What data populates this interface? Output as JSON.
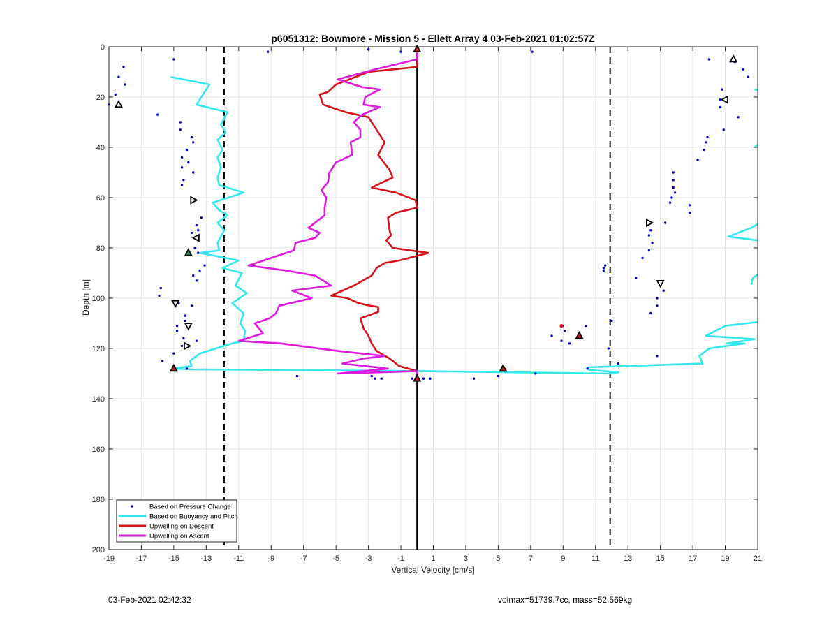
{
  "chart_data": {
    "type": "scatter",
    "title": "p6051312: Bowmore - Mission 5 - Ellett Array 4 03-Feb-2021 01:02:57Z",
    "xlabel": "Vertical Velocity [cm/s]",
    "ylabel": "Depth [m]",
    "xlim": [
      -19,
      21
    ],
    "ylim": [
      0,
      200
    ],
    "y_reversed": true,
    "xticks": [
      -19,
      -17,
      -15,
      -13,
      -11,
      -9,
      -7,
      -5,
      -3,
      -1,
      1,
      3,
      5,
      7,
      9,
      11,
      13,
      15,
      17,
      19,
      21
    ],
    "yticks": [
      0,
      20,
      40,
      60,
      80,
      100,
      120,
      140,
      160,
      180,
      200
    ],
    "grid": true,
    "legend_position": "bottom-left",
    "reference_lines": {
      "solid_x": 0,
      "dashed_x": [
        -11.9,
        11.9
      ]
    },
    "series": [
      {
        "name": "Based on Pressure Change",
        "style": "points",
        "color": "#0000cc",
        "points": [
          [
            -9.2,
            2
          ],
          [
            -3,
            1
          ],
          [
            -1,
            2
          ],
          [
            7.1,
            2
          ],
          [
            -15,
            5
          ],
          [
            -18.1,
            8
          ],
          [
            -18.4,
            12
          ],
          [
            -18,
            15
          ],
          [
            -18.6,
            19
          ],
          [
            -19,
            23
          ],
          [
            -16,
            27
          ],
          [
            -14.6,
            30
          ],
          [
            -14.6,
            33
          ],
          [
            -13.9,
            36
          ],
          [
            -13.8,
            38
          ],
          [
            -14.2,
            41
          ],
          [
            -14.5,
            44
          ],
          [
            -14.1,
            46
          ],
          [
            -14.5,
            48
          ],
          [
            -13.8,
            50
          ],
          [
            -14.4,
            53
          ],
          [
            -14.5,
            55
          ],
          [
            -13.3,
            68
          ],
          [
            -13.6,
            71
          ],
          [
            -13.5,
            73
          ],
          [
            -13.9,
            74
          ],
          [
            -13.7,
            80
          ],
          [
            -13.5,
            82
          ],
          [
            -13.1,
            87
          ],
          [
            -13.4,
            89
          ],
          [
            -13.8,
            91
          ],
          [
            -13.6,
            93
          ],
          [
            -15.8,
            96
          ],
          [
            -15.9,
            99
          ],
          [
            -14.7,
            102
          ],
          [
            -13.9,
            103
          ],
          [
            -14.3,
            107
          ],
          [
            -14.3,
            109
          ],
          [
            -14.8,
            111
          ],
          [
            -14.8,
            113
          ],
          [
            -14.4,
            116
          ],
          [
            -13.6,
            117
          ],
          [
            -14.5,
            119
          ],
          [
            -15,
            122
          ],
          [
            -15.7,
            125
          ],
          [
            -15,
            127
          ],
          [
            -14.2,
            128
          ],
          [
            -7.4,
            131
          ],
          [
            -2.8,
            131
          ],
          [
            -2.6,
            132
          ],
          [
            -2.2,
            132
          ],
          [
            0,
            132
          ],
          [
            -0.3,
            132
          ],
          [
            0.4,
            132
          ],
          [
            0.8,
            132
          ],
          [
            3.5,
            132
          ],
          [
            5,
            131
          ],
          [
            7.3,
            130
          ],
          [
            9,
            111
          ],
          [
            10.4,
            111
          ],
          [
            9.1,
            113
          ],
          [
            8.3,
            115
          ],
          [
            8.9,
            117
          ],
          [
            9.4,
            118
          ],
          [
            10,
            114
          ],
          [
            10.5,
            128
          ],
          [
            12.4,
            126
          ],
          [
            11.5,
            88
          ],
          [
            11.6,
            87
          ],
          [
            11.5,
            89
          ],
          [
            12,
            109
          ],
          [
            11.8,
            120
          ],
          [
            13.5,
            92
          ],
          [
            13.9,
            84
          ],
          [
            14.3,
            75
          ],
          [
            14.3,
            81
          ],
          [
            14.5,
            78
          ],
          [
            14.4,
            73
          ],
          [
            14.4,
            106
          ],
          [
            14.8,
            103
          ],
          [
            14.8,
            100
          ],
          [
            15.2,
            97
          ],
          [
            15.3,
            70
          ],
          [
            14.8,
            123
          ],
          [
            15.8,
            50
          ],
          [
            15.8,
            53
          ],
          [
            15.8,
            56
          ],
          [
            15.9,
            58
          ],
          [
            15.7,
            60
          ],
          [
            15.6,
            62
          ],
          [
            16.8,
            63
          ],
          [
            16.8,
            66
          ],
          [
            17.3,
            45
          ],
          [
            17.7,
            41
          ],
          [
            17.8,
            38
          ],
          [
            17.9,
            36
          ],
          [
            18,
            5
          ],
          [
            18.7,
            24
          ],
          [
            18.8,
            17
          ],
          [
            18.7,
            21
          ],
          [
            18.9,
            33
          ],
          [
            19.6,
            6
          ],
          [
            20.1,
            9
          ],
          [
            20.4,
            12
          ],
          [
            19.8,
            28
          ]
        ]
      },
      {
        "name": "Based on Buoyancy and Pitch",
        "style": "line",
        "color": "#33e8ee",
        "paths": [
          [
            [
              -15.2,
              12
            ],
            [
              -12.8,
              15
            ],
            [
              -13.6,
              23
            ],
            [
              -11.7,
              26
            ],
            [
              -12.1,
              31
            ],
            [
              -11.8,
              34
            ],
            [
              -12.3,
              37
            ],
            [
              -12,
              41
            ],
            [
              -12.3,
              44
            ],
            [
              -12.1,
              48
            ],
            [
              -12.3,
              52
            ],
            [
              -12.2,
              55
            ],
            [
              -10.7,
              58
            ],
            [
              -12.6,
              62
            ],
            [
              -12.2,
              65
            ],
            [
              -11.7,
              67
            ],
            [
              -12.3,
              70
            ],
            [
              -11.9,
              73
            ],
            [
              -12.3,
              78
            ],
            [
              -12.2,
              81
            ],
            [
              -13.4,
              82
            ],
            [
              -11,
              85
            ],
            [
              -12,
              88
            ],
            [
              -10.8,
              90
            ],
            [
              -11.2,
              95
            ],
            [
              -10.5,
              98
            ],
            [
              -11.4,
              102
            ],
            [
              -10.7,
              106
            ],
            [
              -10.9,
              110
            ],
            [
              -10.6,
              113
            ],
            [
              -10.7,
              117
            ],
            [
              -11.4,
              118
            ],
            [
              -13.4,
              122
            ],
            [
              -14,
              125
            ],
            [
              -13.9,
              127
            ],
            [
              -15,
              128
            ],
            [
              -13.9,
              128.3
            ],
            [
              0,
              129
            ],
            [
              12,
              130
            ],
            [
              12.4,
              129.5
            ],
            [
              10.6,
              128.5
            ],
            [
              10.5,
              127.5
            ],
            [
              17.6,
              126
            ],
            [
              17.4,
              123
            ],
            [
              18,
              120
            ],
            [
              20.2,
              118
            ],
            [
              19.1,
              118
            ],
            [
              20.8,
              116.3
            ],
            [
              17.8,
              115
            ],
            [
              19,
              111
            ],
            [
              21,
              109.5
            ]
          ],
          [
            [
              20.6,
              94.5
            ],
            [
              20.7,
              92
            ],
            [
              21,
              90.5
            ]
          ],
          [
            [
              21,
              77
            ],
            [
              19.2,
              75.5
            ],
            [
              20.6,
              72
            ],
            [
              21,
              70.5
            ]
          ],
          [
            [
              20.8,
              40
            ],
            [
              21,
              39
            ]
          ],
          [
            [
              20.8,
              17
            ],
            [
              21,
              17.2
            ]
          ]
        ]
      },
      {
        "name": "Upwelling on Descent",
        "style": "line",
        "color": "#d4141a",
        "points": [
          [
            0,
            1
          ],
          [
            0,
            8
          ],
          [
            -3,
            10
          ],
          [
            -5,
            15
          ],
          [
            -5.5,
            18
          ],
          [
            -6,
            19
          ],
          [
            -5.8,
            23
          ],
          [
            -4.4,
            26
          ],
          [
            -3,
            28
          ],
          [
            -2.7,
            31
          ],
          [
            -2.5,
            33
          ],
          [
            -2,
            38
          ],
          [
            -2.4,
            43
          ],
          [
            -1.7,
            49
          ],
          [
            -1.5,
            52
          ],
          [
            -2.8,
            56
          ],
          [
            -1.3,
            58
          ],
          [
            -0.1,
            61
          ],
          [
            0,
            64
          ],
          [
            -1.3,
            66
          ],
          [
            -1.8,
            68
          ],
          [
            -1.7,
            73
          ],
          [
            -1.6,
            75
          ],
          [
            -1.9,
            77
          ],
          [
            -1.5,
            80
          ],
          [
            0.7,
            82
          ],
          [
            -1.1,
            85
          ],
          [
            -2,
            86
          ],
          [
            -2.5,
            88
          ],
          [
            -2.8,
            91
          ],
          [
            -3.9,
            95
          ],
          [
            -5.3,
            99
          ],
          [
            -4.3,
            100
          ],
          [
            -3.6,
            102
          ],
          [
            -2.9,
            103
          ],
          [
            -2.4,
            103.5
          ],
          [
            -2.4,
            105.5
          ],
          [
            -3.5,
            108
          ],
          [
            -3.3,
            112
          ],
          [
            -3,
            115
          ],
          [
            -2.8,
            118
          ],
          [
            -2.5,
            121
          ],
          [
            -1.7,
            124
          ],
          [
            -1.1,
            127
          ],
          [
            0,
            129
          ],
          [
            0,
            132
          ]
        ]
      },
      {
        "name": "Upwelling on Ascent",
        "style": "line",
        "color": "#e019e0",
        "points": [
          [
            0,
            1
          ],
          [
            0,
            5
          ],
          [
            -2.6,
            9
          ],
          [
            -4.9,
            13
          ],
          [
            -3.4,
            16
          ],
          [
            -2.3,
            17
          ],
          [
            -3.2,
            20
          ],
          [
            -3.3,
            23
          ],
          [
            -2.3,
            24
          ],
          [
            -3.4,
            27
          ],
          [
            -3.9,
            30
          ],
          [
            -3.5,
            33
          ],
          [
            -3.5,
            36
          ],
          [
            -4.1,
            38
          ],
          [
            -4,
            43
          ],
          [
            -5,
            46
          ],
          [
            -5.4,
            50
          ],
          [
            -5.5,
            54
          ],
          [
            -5.9,
            57
          ],
          [
            -5.6,
            60
          ],
          [
            -5.7,
            64
          ],
          [
            -5.7,
            67
          ],
          [
            -6.7,
            72
          ],
          [
            -6,
            74
          ],
          [
            -6.3,
            76
          ],
          [
            -7.5,
            78
          ],
          [
            -7.6,
            81
          ],
          [
            -9,
            84
          ],
          [
            -10.4,
            87
          ],
          [
            -8.1,
            89
          ],
          [
            -6.3,
            91
          ],
          [
            -5.3,
            95
          ],
          [
            -7.7,
            97
          ],
          [
            -6.5,
            100
          ],
          [
            -8.5,
            103
          ],
          [
            -8.7,
            106
          ],
          [
            -9.1,
            108
          ],
          [
            -10,
            110
          ],
          [
            -9.5,
            114
          ],
          [
            -11,
            117
          ],
          [
            -8.4,
            118
          ],
          [
            -4.9,
            121
          ],
          [
            -2,
            123
          ],
          [
            -3.3,
            124
          ],
          [
            -4.6,
            126
          ],
          [
            -1.8,
            128
          ],
          [
            -4.9,
            130
          ],
          [
            0,
            129
          ],
          [
            0,
            132
          ]
        ]
      }
    ],
    "triangle_markers": [
      {
        "x": 0,
        "y": 1,
        "fill": "#d4141a",
        "rotation": 0
      },
      {
        "x": 19.5,
        "y": 5,
        "fill": "#ffffff",
        "rotation": 0
      },
      {
        "x": -18.4,
        "y": 23,
        "fill": "#ffffff",
        "rotation": 0
      },
      {
        "x": 19,
        "y": 21,
        "fill": "#ffffff",
        "rotation": -90
      },
      {
        "x": -13.8,
        "y": 61,
        "fill": "#ffffff",
        "rotation": 90
      },
      {
        "x": 14.3,
        "y": 70,
        "fill": "#ffffff",
        "rotation": 90
      },
      {
        "x": -13.6,
        "y": 76,
        "fill": "#ffffff",
        "rotation": -90
      },
      {
        "x": -14.1,
        "y": 82,
        "fill": "#2e8b57",
        "rotation": 0
      },
      {
        "x": 15,
        "y": 94,
        "fill": "#ffffff",
        "rotation": 180
      },
      {
        "x": -14.9,
        "y": 102,
        "fill": "#ffffff",
        "rotation": 180
      },
      {
        "x": -14.1,
        "y": 111,
        "fill": "#ffffff",
        "rotation": 180
      },
      {
        "x": 10,
        "y": 115,
        "fill": "#d4141a",
        "rotation": 0
      },
      {
        "x": -14.2,
        "y": 119,
        "fill": "#ffffff",
        "rotation": 90
      },
      {
        "x": -15,
        "y": 128,
        "fill": "#d4141a",
        "rotation": 0
      },
      {
        "x": 5.3,
        "y": 128,
        "fill": "#d4141a",
        "rotation": 0
      },
      {
        "x": 0,
        "y": 132,
        "fill": "#d4141a",
        "rotation": 0
      }
    ],
    "red_points": [
      [
        8.9,
        111
      ]
    ]
  },
  "footer": {
    "timestamp": "03-Feb-2021 02:42:32",
    "stats": "volmax=51739.7cc, mass=52.569kg"
  }
}
